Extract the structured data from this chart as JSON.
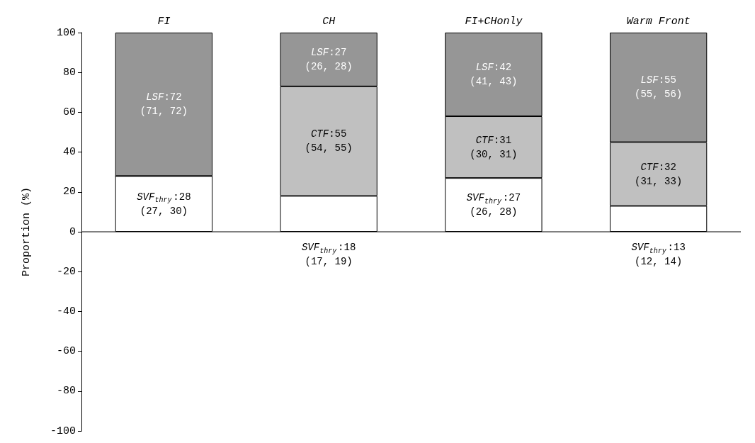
{
  "chart_data": {
    "type": "bar",
    "stacked": true,
    "categories": [
      "FI",
      "CH",
      "FI+CHonly",
      "Warm Front"
    ],
    "ylabel": "Proportion (%)",
    "ylim": [
      -100,
      100
    ],
    "yticks": [
      -100,
      -80,
      -60,
      -40,
      -20,
      0,
      20,
      40,
      60,
      80,
      100
    ],
    "series": [
      {
        "color": "#ffffff",
        "values": [
          28,
          18,
          27,
          13
        ],
        "value_labels": [
          "SVF$_{thry}$:28\n(27, 30)",
          "SVF$_{thry}$:18\n(17, 19)",
          "SVF$_{thry}$:27\n(26, 28)",
          "SVF$_{thry}$:13\n(12, 14)"
        ]
      },
      {
        "color": "#c0c0c0",
        "values": [
          0,
          55,
          31,
          32
        ],
        "value_labels": [
          null,
          "CTF:55\n(54, 55)",
          "CTF:31\n(30, 31)",
          "CTF:32\n(31, 33)"
        ]
      },
      {
        "color": "#969696",
        "values": [
          72,
          27,
          42,
          55
        ],
        "value_labels": [
          "LSF:72\n(71, 72)",
          "LSF:27\n(26, 28)",
          "LSF:42\n(41, 43)",
          "LSF:55\n(55, 56)"
        ]
      }
    ]
  }
}
